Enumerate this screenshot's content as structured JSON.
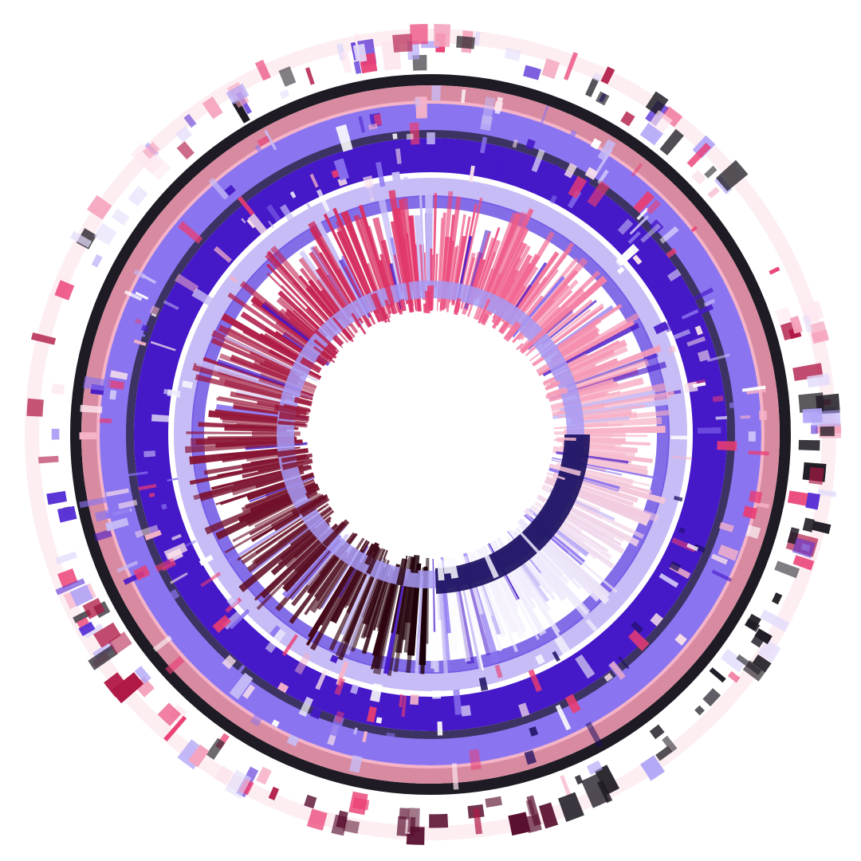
{
  "artwork": {
    "kind": "radial-abstract",
    "background": "#ffffff",
    "palette": {
      "black": "#1f1b24",
      "dusty_pink": "#d88aa0",
      "light_pink": "#f5b3c8",
      "periwinkle": "#8b74f0",
      "indigo": "#4518c8",
      "slate": "#3c3363",
      "lavender": "#c7bcf6",
      "hot_pink": "#ea3d72",
      "crimson": "#b01845",
      "maroon": "#5a1030",
      "navy": "#1b1060",
      "blush": "#fbe2ea",
      "white": "#ffffff"
    },
    "sweep_colors": [
      "#1a0008",
      "#5a0e23",
      "#8e1535",
      "#c0204f",
      "#ea3d72",
      "#f47ba1",
      "#f8b6c9",
      "#ece6fb",
      "#ffffff"
    ],
    "outer_marks_colors": [
      "#f5a3bd",
      "#b0a4f7",
      "#e3dcfb",
      "#ea3d72",
      "#5a33d6",
      "#b01845",
      "#1f1b24",
      "#fde7ef"
    ]
  }
}
